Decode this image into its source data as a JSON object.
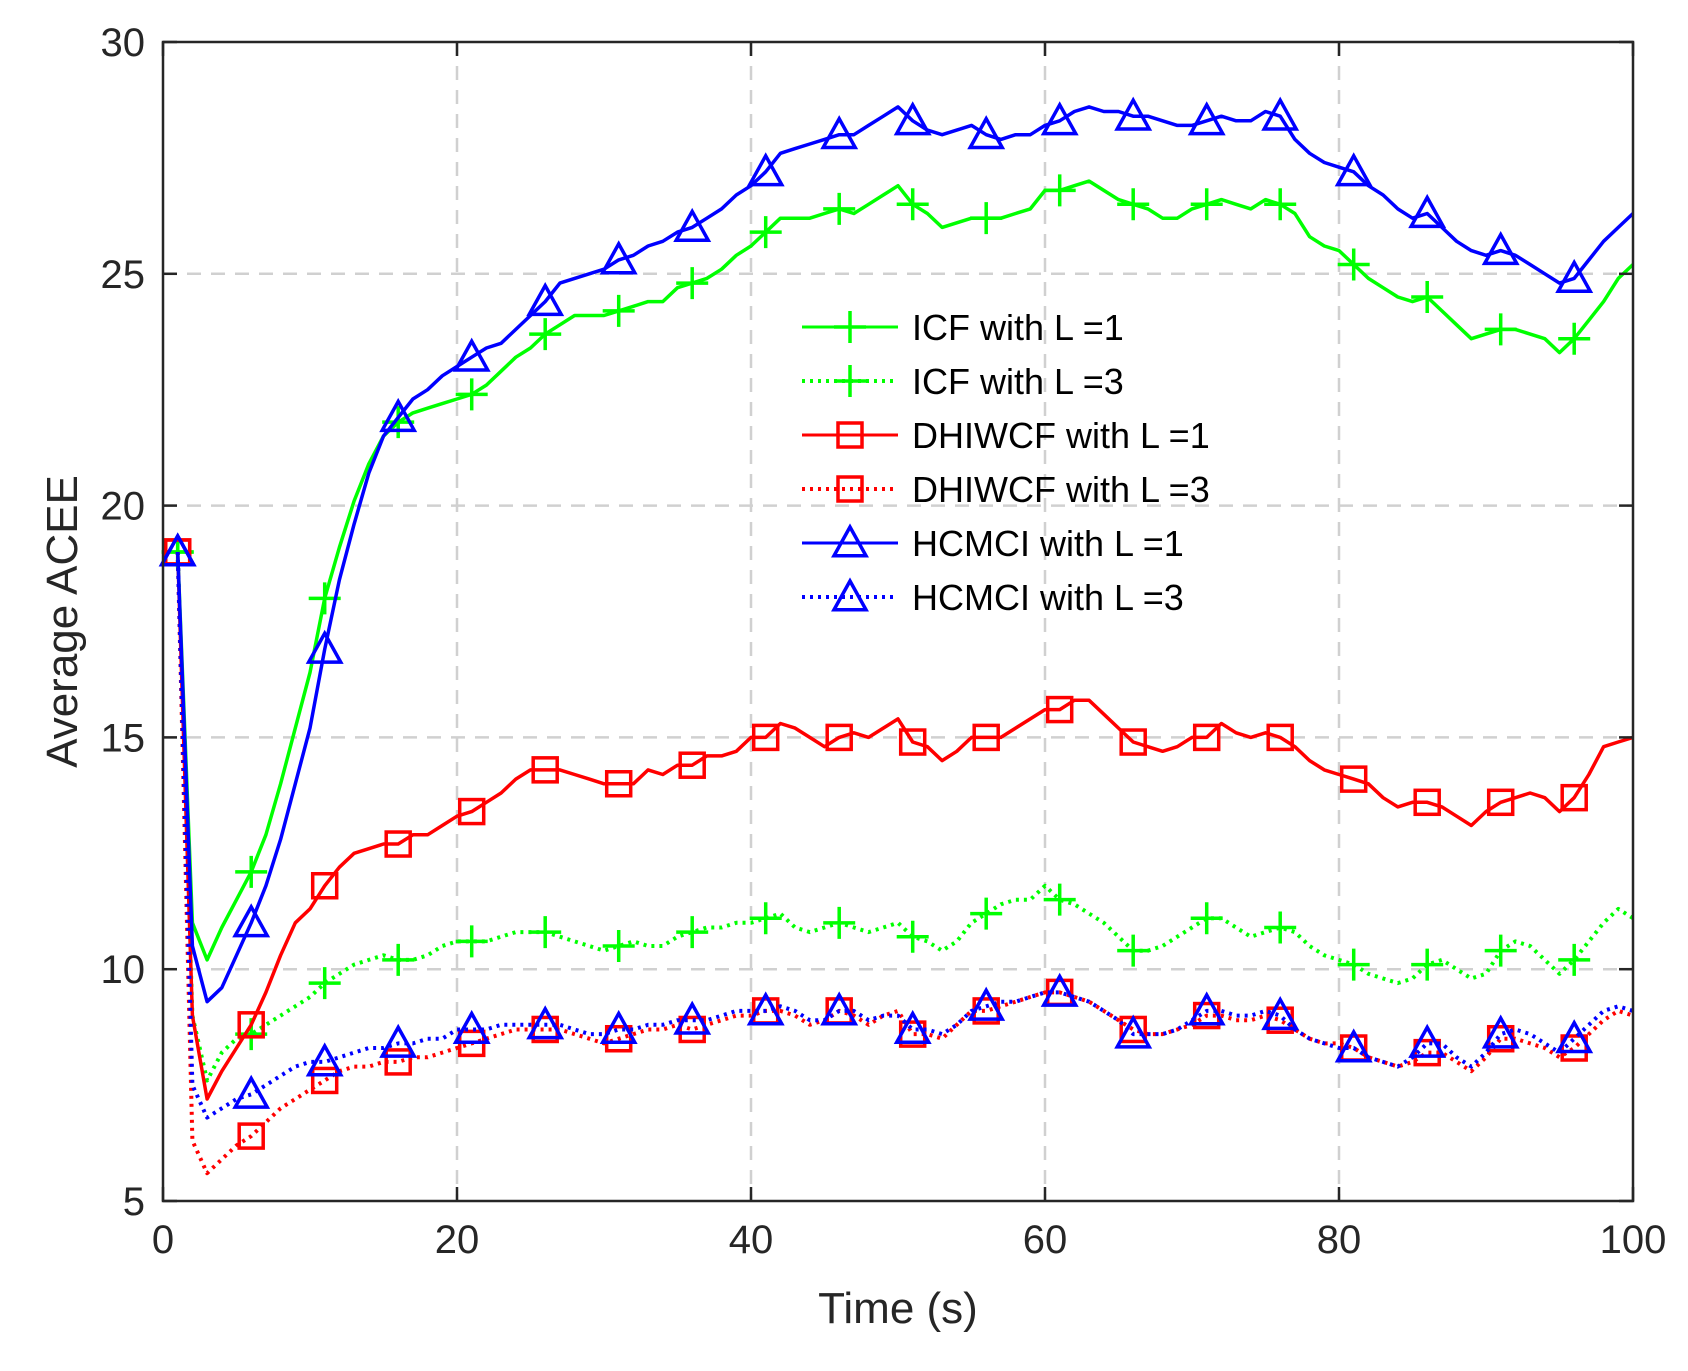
{
  "chart_data": {
    "type": "line",
    "title": "",
    "xlabel": "Time (s)",
    "ylabel": "Average ACEE",
    "xlim": [
      0,
      100
    ],
    "ylim": [
      5,
      30
    ],
    "xticks": [
      0,
      20,
      40,
      60,
      80,
      100
    ],
    "yticks": [
      5,
      10,
      15,
      20,
      25,
      30
    ],
    "xtick_labels": [
      "0",
      "20",
      "40",
      "60",
      "80",
      "100"
    ],
    "ytick_labels": [
      "5",
      "10",
      "15",
      "20",
      "25",
      "30"
    ],
    "grid": true,
    "legend_position": "center",
    "x": [
      1,
      2,
      3,
      4,
      5,
      6,
      7,
      8,
      9,
      10,
      11,
      12,
      13,
      14,
      15,
      16,
      17,
      18,
      19,
      20,
      21,
      22,
      23,
      24,
      25,
      26,
      27,
      28,
      29,
      30,
      31,
      32,
      33,
      34,
      35,
      36,
      37,
      38,
      39,
      40,
      41,
      42,
      43,
      44,
      45,
      46,
      47,
      48,
      49,
      50,
      51,
      52,
      53,
      54,
      55,
      56,
      57,
      58,
      59,
      60,
      61,
      62,
      63,
      64,
      65,
      66,
      67,
      68,
      69,
      70,
      71,
      72,
      73,
      74,
      75,
      76,
      77,
      78,
      79,
      80,
      81,
      82,
      83,
      84,
      85,
      86,
      87,
      88,
      89,
      90,
      91,
      92,
      93,
      94,
      95,
      96,
      97,
      98,
      99,
      100
    ],
    "marker_indices": [
      0,
      5,
      10,
      15,
      20,
      25,
      30,
      35,
      40,
      45,
      50,
      55,
      60,
      65,
      70,
      75,
      80,
      85,
      90,
      95
    ],
    "series": [
      {
        "name": "ICF with L =1",
        "color": "#00ff00",
        "line_style": "solid",
        "marker": "plus",
        "values": [
          19.0,
          11.0,
          10.2,
          10.9,
          11.5,
          12.1,
          12.9,
          14.0,
          15.2,
          16.4,
          18.0,
          19.1,
          20.1,
          20.9,
          21.5,
          21.8,
          22.0,
          22.1,
          22.2,
          22.3,
          22.4,
          22.6,
          22.9,
          23.2,
          23.4,
          23.7,
          23.9,
          24.1,
          24.1,
          24.1,
          24.2,
          24.3,
          24.4,
          24.4,
          24.7,
          24.8,
          24.9,
          25.1,
          25.4,
          25.6,
          25.9,
          26.2,
          26.2,
          26.2,
          26.3,
          26.4,
          26.3,
          26.5,
          26.7,
          26.9,
          26.5,
          26.3,
          26.0,
          26.1,
          26.2,
          26.2,
          26.2,
          26.3,
          26.4,
          26.8,
          26.8,
          26.9,
          27.0,
          26.8,
          26.6,
          26.5,
          26.4,
          26.2,
          26.2,
          26.4,
          26.5,
          26.6,
          26.5,
          26.4,
          26.6,
          26.5,
          26.3,
          25.8,
          25.6,
          25.5,
          25.2,
          24.9,
          24.7,
          24.5,
          24.4,
          24.5,
          24.2,
          23.9,
          23.6,
          23.7,
          23.8,
          23.8,
          23.7,
          23.6,
          23.3,
          23.6,
          24.0,
          24.4,
          24.9,
          25.2
        ]
      },
      {
        "name": "ICF with L =3",
        "color": "#00ff00",
        "line_style": "dotted",
        "marker": "plus",
        "values": [
          19.0,
          9.0,
          7.6,
          8.2,
          8.5,
          8.6,
          8.8,
          9.0,
          9.2,
          9.4,
          9.7,
          9.9,
          10.1,
          10.2,
          10.3,
          10.2,
          10.2,
          10.3,
          10.5,
          10.6,
          10.6,
          10.6,
          10.7,
          10.8,
          10.8,
          10.8,
          10.7,
          10.6,
          10.5,
          10.4,
          10.5,
          10.6,
          10.5,
          10.5,
          10.7,
          10.8,
          10.9,
          10.9,
          11.0,
          11.0,
          11.1,
          11.2,
          10.9,
          10.8,
          10.9,
          11.0,
          10.9,
          10.8,
          10.9,
          11.0,
          10.7,
          10.6,
          10.4,
          10.6,
          11.0,
          11.2,
          11.4,
          11.5,
          11.5,
          11.8,
          11.5,
          11.4,
          11.2,
          11.0,
          10.7,
          10.4,
          10.4,
          10.5,
          10.7,
          10.9,
          11.1,
          11.1,
          10.9,
          10.7,
          10.8,
          10.9,
          10.8,
          10.5,
          10.3,
          10.2,
          10.1,
          9.9,
          9.8,
          9.7,
          9.8,
          10.1,
          10.2,
          10.0,
          9.8,
          9.9,
          10.4,
          10.6,
          10.5,
          10.2,
          9.9,
          10.2,
          10.6,
          11.0,
          11.3,
          11.1
        ]
      },
      {
        "name": "DHIWCF with L =1",
        "color": "#ff0000",
        "line_style": "solid",
        "marker": "square",
        "values": [
          19.0,
          9.0,
          7.2,
          7.8,
          8.3,
          8.8,
          9.5,
          10.3,
          11.0,
          11.3,
          11.8,
          12.2,
          12.5,
          12.6,
          12.7,
          12.7,
          12.9,
          12.9,
          13.1,
          13.3,
          13.4,
          13.6,
          13.8,
          14.1,
          14.3,
          14.3,
          14.3,
          14.2,
          14.1,
          14.0,
          14.0,
          14.0,
          14.3,
          14.2,
          14.4,
          14.4,
          14.6,
          14.6,
          14.7,
          15.0,
          15.0,
          15.3,
          15.2,
          15.0,
          14.8,
          15.0,
          15.1,
          15.0,
          15.2,
          15.4,
          14.9,
          14.8,
          14.5,
          14.7,
          15.0,
          15.0,
          15.0,
          15.2,
          15.4,
          15.6,
          15.6,
          15.8,
          15.8,
          15.5,
          15.2,
          14.9,
          14.8,
          14.7,
          14.8,
          15.0,
          15.0,
          15.3,
          15.1,
          15.0,
          15.1,
          15.0,
          14.8,
          14.5,
          14.3,
          14.2,
          14.1,
          14.0,
          13.7,
          13.5,
          13.6,
          13.6,
          13.5,
          13.3,
          13.1,
          13.4,
          13.6,
          13.7,
          13.8,
          13.7,
          13.4,
          13.7,
          14.2,
          14.8,
          14.9,
          15.0
        ]
      },
      {
        "name": "DHIWCF with L =3",
        "color": "#ff0000",
        "line_style": "dotted",
        "marker": "square",
        "values": [
          19.0,
          6.3,
          5.6,
          5.9,
          6.2,
          6.4,
          6.7,
          7.0,
          7.2,
          7.4,
          7.6,
          7.8,
          7.9,
          7.9,
          8.0,
          8.0,
          8.1,
          8.1,
          8.2,
          8.3,
          8.4,
          8.5,
          8.6,
          8.7,
          8.7,
          8.7,
          8.7,
          8.6,
          8.5,
          8.4,
          8.5,
          8.6,
          8.7,
          8.7,
          8.8,
          8.7,
          8.8,
          8.9,
          9.0,
          9.0,
          9.1,
          9.1,
          9.0,
          8.8,
          8.9,
          9.1,
          9.0,
          8.8,
          9.0,
          9.1,
          8.6,
          8.6,
          8.5,
          8.8,
          9.1,
          9.1,
          9.2,
          9.3,
          9.4,
          9.5,
          9.5,
          9.4,
          9.3,
          9.1,
          8.9,
          8.7,
          8.6,
          8.6,
          8.7,
          8.8,
          9.0,
          9.0,
          8.9,
          8.9,
          9.0,
          8.9,
          8.7,
          8.5,
          8.4,
          8.4,
          8.3,
          8.1,
          8.0,
          7.9,
          8.0,
          8.2,
          8.2,
          8.0,
          7.8,
          8.1,
          8.5,
          8.5,
          8.4,
          8.3,
          8.1,
          8.3,
          8.6,
          8.9,
          9.1,
          9.0
        ]
      },
      {
        "name": "HCMCI with L =1",
        "color": "#0000ff",
        "line_style": "solid",
        "marker": "triangle",
        "values": [
          19.0,
          10.5,
          9.3,
          9.6,
          10.3,
          11.0,
          11.8,
          12.8,
          14.0,
          15.2,
          16.9,
          18.4,
          19.6,
          20.7,
          21.5,
          21.9,
          22.3,
          22.5,
          22.8,
          23.0,
          23.2,
          23.4,
          23.5,
          23.8,
          24.1,
          24.4,
          24.8,
          24.9,
          25.0,
          25.1,
          25.3,
          25.4,
          25.6,
          25.7,
          25.9,
          26.0,
          26.2,
          26.4,
          26.7,
          26.9,
          27.2,
          27.6,
          27.7,
          27.8,
          27.9,
          28.0,
          28.0,
          28.2,
          28.4,
          28.6,
          28.3,
          28.1,
          28.0,
          28.1,
          28.2,
          28.0,
          27.9,
          28.0,
          28.0,
          28.2,
          28.3,
          28.5,
          28.6,
          28.5,
          28.5,
          28.4,
          28.4,
          28.3,
          28.2,
          28.2,
          28.3,
          28.4,
          28.3,
          28.3,
          28.5,
          28.4,
          27.9,
          27.6,
          27.4,
          27.3,
          27.2,
          26.9,
          26.7,
          26.4,
          26.2,
          26.3,
          26.0,
          25.7,
          25.5,
          25.4,
          25.5,
          25.4,
          25.2,
          25.0,
          24.8,
          24.9,
          25.3,
          25.7,
          26.0,
          26.3
        ]
      },
      {
        "name": "HCMCI with L =3",
        "color": "#0000ff",
        "line_style": "dotted",
        "marker": "triangle",
        "values": [
          19.0,
          7.5,
          6.8,
          7.0,
          7.2,
          7.3,
          7.5,
          7.7,
          7.9,
          8.0,
          8.0,
          8.1,
          8.2,
          8.3,
          8.3,
          8.4,
          8.4,
          8.5,
          8.5,
          8.7,
          8.7,
          8.7,
          8.8,
          8.8,
          8.8,
          8.8,
          8.8,
          8.7,
          8.6,
          8.6,
          8.7,
          8.7,
          8.8,
          8.8,
          8.9,
          8.9,
          8.9,
          9.0,
          9.1,
          9.1,
          9.1,
          9.2,
          9.1,
          8.9,
          8.9,
          9.1,
          9.1,
          8.9,
          9.0,
          9.0,
          8.7,
          8.7,
          8.6,
          8.8,
          9.1,
          9.2,
          9.3,
          9.3,
          9.4,
          9.5,
          9.5,
          9.4,
          9.3,
          9.1,
          8.9,
          8.6,
          8.6,
          8.6,
          8.7,
          8.9,
          9.1,
          9.1,
          9.0,
          9.0,
          9.1,
          9.0,
          8.7,
          8.5,
          8.4,
          8.3,
          8.3,
          8.1,
          8.0,
          7.9,
          8.1,
          8.4,
          8.4,
          8.1,
          7.9,
          8.2,
          8.6,
          8.7,
          8.6,
          8.4,
          8.2,
          8.5,
          8.8,
          9.1,
          9.2,
          9.1
        ]
      }
    ]
  }
}
